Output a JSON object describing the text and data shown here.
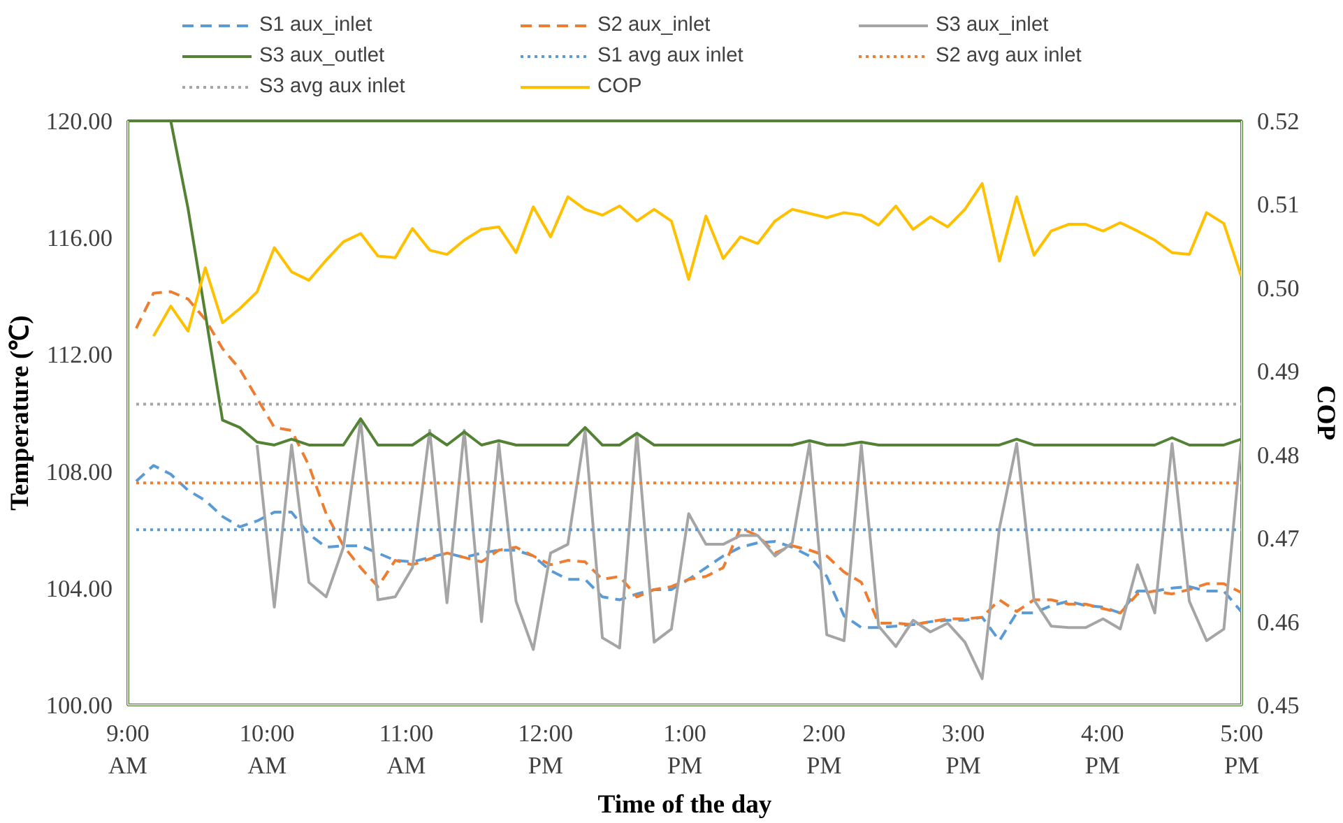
{
  "chart_data": {
    "type": "line",
    "xlabel": "Time of the day",
    "ylabel": "Temperature (℃)",
    "y2label": "COP",
    "x": [
      9.06,
      9.184,
      9.308,
      9.432,
      9.556,
      9.68,
      9.804,
      9.928,
      10.052,
      10.176,
      10.3,
      10.424,
      10.548,
      10.672,
      10.796,
      10.92,
      11.044,
      11.168,
      11.292,
      11.416,
      11.54,
      11.664,
      11.788,
      11.912,
      12.036,
      12.16,
      12.284,
      12.408,
      12.532,
      12.656,
      12.78,
      12.904,
      13.028,
      13.152,
      13.276,
      13.4,
      13.524,
      13.648,
      13.772,
      13.896,
      14.02,
      14.144,
      14.268,
      14.392,
      14.516,
      14.64,
      14.764,
      14.888,
      15.012,
      15.136,
      15.26,
      15.384,
      15.508,
      15.632,
      15.756,
      15.88,
      16.004,
      16.128,
      16.252,
      16.376,
      16.5,
      16.624,
      16.748,
      16.872,
      16.996
    ],
    "xlim": [
      9,
      17
    ],
    "xticks": [
      {
        "value": 9,
        "label": "9:00\nAM"
      },
      {
        "value": 10,
        "label": "10:00\nAM"
      },
      {
        "value": 11,
        "label": "11:00\nAM"
      },
      {
        "value": 12,
        "label": "12:00\nPM"
      },
      {
        "value": 13,
        "label": "1:00\nPM"
      },
      {
        "value": 14,
        "label": "2:00\nPM"
      },
      {
        "value": 15,
        "label": "3:00\nPM"
      },
      {
        "value": 16,
        "label": "4:00\nPM"
      },
      {
        "value": 17,
        "label": "5:00\nPM"
      }
    ],
    "ylim": [
      100,
      120
    ],
    "yticks": [
      {
        "value": 100,
        "label": "100.00"
      },
      {
        "value": 104,
        "label": "104.00"
      },
      {
        "value": 108,
        "label": "108.00"
      },
      {
        "value": 112,
        "label": "112.00"
      },
      {
        "value": 116,
        "label": "116.00"
      },
      {
        "value": 120,
        "label": "120.00"
      }
    ],
    "y2lim": [
      0.45,
      0.52
    ],
    "y2ticks": [
      {
        "value": 0.45,
        "label": "0.45"
      },
      {
        "value": 0.46,
        "label": "0.46"
      },
      {
        "value": 0.47,
        "label": "0.47"
      },
      {
        "value": 0.48,
        "label": "0.48"
      },
      {
        "value": 0.49,
        "label": "0.49"
      },
      {
        "value": 0.5,
        "label": "0.50"
      },
      {
        "value": 0.51,
        "label": "0.51"
      },
      {
        "value": 0.52,
        "label": "0.52"
      }
    ],
    "grid": false,
    "legend": "top",
    "marker": "none",
    "series": [
      {
        "name": "S1 aux_inlet",
        "color": "#5b9bd5",
        "line_style": "dashed",
        "values": [
          107.66,
          108.2,
          107.9,
          107.35,
          107.0,
          106.45,
          106.1,
          106.3,
          106.6,
          106.6,
          105.85,
          105.4,
          105.45,
          105.45,
          105.2,
          104.95,
          104.9,
          105.05,
          105.2,
          105.05,
          105.2,
          105.3,
          105.3,
          105.1,
          104.6,
          104.3,
          104.3,
          103.7,
          103.6,
          103.8,
          103.95,
          103.95,
          104.3,
          104.7,
          105.1,
          105.4,
          105.55,
          105.6,
          105.4,
          105.1,
          104.4,
          103.05,
          102.65,
          102.65,
          102.7,
          102.75,
          102.85,
          102.9,
          102.9,
          103.0,
          102.2,
          103.15,
          103.15,
          103.4,
          103.55,
          103.4,
          103.35,
          103.15,
          103.9,
          103.9,
          104.0,
          104.05,
          103.9,
          103.9,
          103.2
        ]
      },
      {
        "name": "S2 aux_inlet",
        "color": "#ed7d31",
        "line_style": "dashed",
        "values": [
          112.9,
          114.1,
          114.15,
          113.9,
          113.2,
          112.2,
          111.5,
          110.5,
          109.5,
          109.4,
          108.2,
          106.55,
          105.45,
          104.7,
          104.05,
          104.95,
          104.8,
          105.0,
          105.2,
          105.05,
          104.9,
          105.3,
          105.4,
          105.1,
          104.8,
          104.95,
          104.9,
          104.3,
          104.4,
          103.7,
          103.95,
          104.05,
          104.3,
          104.4,
          104.7,
          106.05,
          105.8,
          105.2,
          105.45,
          105.3,
          105.1,
          104.55,
          104.2,
          102.8,
          102.8,
          102.75,
          102.85,
          102.95,
          102.95,
          103.0,
          103.6,
          103.2,
          103.6,
          103.6,
          103.45,
          103.45,
          103.3,
          103.15,
          103.8,
          103.9,
          103.8,
          103.95,
          104.15,
          104.15,
          103.85
        ]
      },
      {
        "name": "S3 aux_inlet",
        "color": "#a5a5a5",
        "line_style": "solid",
        "values": [
          null,
          null,
          null,
          null,
          null,
          null,
          null,
          108.9,
          103.35,
          108.9,
          104.2,
          103.7,
          105.4,
          109.77,
          103.6,
          103.7,
          104.7,
          109.4,
          103.5,
          109.4,
          102.85,
          108.95,
          103.55,
          101.9,
          105.2,
          105.5,
          109.4,
          102.3,
          101.95,
          109.3,
          102.15,
          102.6,
          106.55,
          105.5,
          105.5,
          105.8,
          105.8,
          105.1,
          105.55,
          108.95,
          102.4,
          102.2,
          108.9,
          102.7,
          102.0,
          102.9,
          102.5,
          102.8,
          102.15,
          100.9,
          106.05,
          108.95,
          103.6,
          102.7,
          102.65,
          102.65,
          102.95,
          102.6,
          104.8,
          103.15,
          108.95,
          103.55,
          102.2,
          102.6,
          108.95
        ]
      },
      {
        "name": "S3 aux_outlet",
        "color": "#548235",
        "line_style": "solid",
        "values": [
          null,
          null,
          120.0,
          117.0,
          113.4,
          109.75,
          109.5,
          109.0,
          108.9,
          109.1,
          108.9,
          108.9,
          108.9,
          109.8,
          108.9,
          108.9,
          108.9,
          109.3,
          108.9,
          109.35,
          108.9,
          109.05,
          108.9,
          108.9,
          108.9,
          108.9,
          109.5,
          108.9,
          108.9,
          109.3,
          108.9,
          108.9,
          108.9,
          108.9,
          108.9,
          108.9,
          108.9,
          108.9,
          108.9,
          109.05,
          108.9,
          108.9,
          109.0,
          108.9,
          108.9,
          108.9,
          108.9,
          108.9,
          108.9,
          108.9,
          108.9,
          109.1,
          108.9,
          108.9,
          108.9,
          108.9,
          108.9,
          108.9,
          108.9,
          108.9,
          109.15,
          108.9,
          108.9,
          108.9,
          109.1
        ]
      },
      {
        "name": "S1 avg aux inlet",
        "color": "#5b9bd5",
        "line_style": "dotted",
        "values": [
          106.0,
          106.0,
          106.0,
          106.0,
          106.0,
          106.0,
          106.0,
          106.0,
          106.0,
          106.0,
          106.0,
          106.0,
          106.0,
          106.0,
          106.0,
          106.0,
          106.0,
          106.0,
          106.0,
          106.0,
          106.0,
          106.0,
          106.0,
          106.0,
          106.0,
          106.0,
          106.0,
          106.0,
          106.0,
          106.0,
          106.0,
          106.0,
          106.0,
          106.0,
          106.0,
          106.0,
          106.0,
          106.0,
          106.0,
          106.0,
          106.0,
          106.0,
          106.0,
          106.0,
          106.0,
          106.0,
          106.0,
          106.0,
          106.0,
          106.0,
          106.0,
          106.0,
          106.0,
          106.0,
          106.0,
          106.0,
          106.0,
          106.0,
          106.0,
          106.0,
          106.0,
          106.0,
          106.0,
          106.0,
          106.0
        ]
      },
      {
        "name": "S2 avg aux inlet",
        "color": "#ed7d31",
        "line_style": "dotted",
        "values": [
          107.6,
          107.6,
          107.6,
          107.6,
          107.6,
          107.6,
          107.6,
          107.6,
          107.6,
          107.6,
          107.6,
          107.6,
          107.6,
          107.6,
          107.6,
          107.6,
          107.6,
          107.6,
          107.6,
          107.6,
          107.6,
          107.6,
          107.6,
          107.6,
          107.6,
          107.6,
          107.6,
          107.6,
          107.6,
          107.6,
          107.6,
          107.6,
          107.6,
          107.6,
          107.6,
          107.6,
          107.6,
          107.6,
          107.6,
          107.6,
          107.6,
          107.6,
          107.6,
          107.6,
          107.6,
          107.6,
          107.6,
          107.6,
          107.6,
          107.6,
          107.6,
          107.6,
          107.6,
          107.6,
          107.6,
          107.6,
          107.6,
          107.6,
          107.6,
          107.6,
          107.6,
          107.6,
          107.6,
          107.6,
          107.6
        ]
      },
      {
        "name": "S3 avg aux inlet",
        "color": "#a5a5a5",
        "line_style": "dotted",
        "values": [
          110.3,
          110.3,
          110.3,
          110.3,
          110.3,
          110.3,
          110.3,
          110.3,
          110.3,
          110.3,
          110.3,
          110.3,
          110.3,
          110.3,
          110.3,
          110.3,
          110.3,
          110.3,
          110.3,
          110.3,
          110.3,
          110.3,
          110.3,
          110.3,
          110.3,
          110.3,
          110.3,
          110.3,
          110.3,
          110.3,
          110.3,
          110.3,
          110.3,
          110.3,
          110.3,
          110.3,
          110.3,
          110.3,
          110.3,
          110.3,
          110.3,
          110.3,
          110.3,
          110.3,
          110.3,
          110.3,
          110.3,
          110.3,
          110.3,
          110.3,
          110.3,
          110.3,
          110.3,
          110.3,
          110.3,
          110.3,
          110.3,
          110.3,
          110.3,
          110.3,
          110.3,
          110.3,
          110.3,
          110.3,
          110.3
        ]
      },
      {
        "name": "COP",
        "color": "#ffc000",
        "line_style": "solid",
        "axis": "y2",
        "values": [
          null,
          0.4942,
          0.4978,
          0.4948,
          0.5024,
          0.4958,
          0.4975,
          0.4995,
          0.5048,
          0.5019,
          0.5009,
          0.5033,
          0.5055,
          0.5065,
          0.5038,
          0.5036,
          0.5071,
          0.5045,
          0.504,
          0.5057,
          0.507,
          0.5073,
          0.5042,
          0.5097,
          0.5061,
          0.5109,
          0.5094,
          0.5087,
          0.5098,
          0.508,
          0.5094,
          0.508,
          0.501,
          0.5086,
          0.5035,
          0.5061,
          0.5053,
          0.508,
          0.5094,
          0.5089,
          0.5084,
          0.509,
          0.5087,
          0.5075,
          0.5098,
          0.507,
          0.5085,
          0.5073,
          0.5094,
          0.5125,
          0.5032,
          0.5109,
          0.5039,
          0.5068,
          0.5076,
          0.5076,
          0.5068,
          0.5078,
          0.5068,
          0.5057,
          0.5042,
          0.504,
          0.509,
          0.5077,
          0.5014
        ]
      }
    ]
  }
}
